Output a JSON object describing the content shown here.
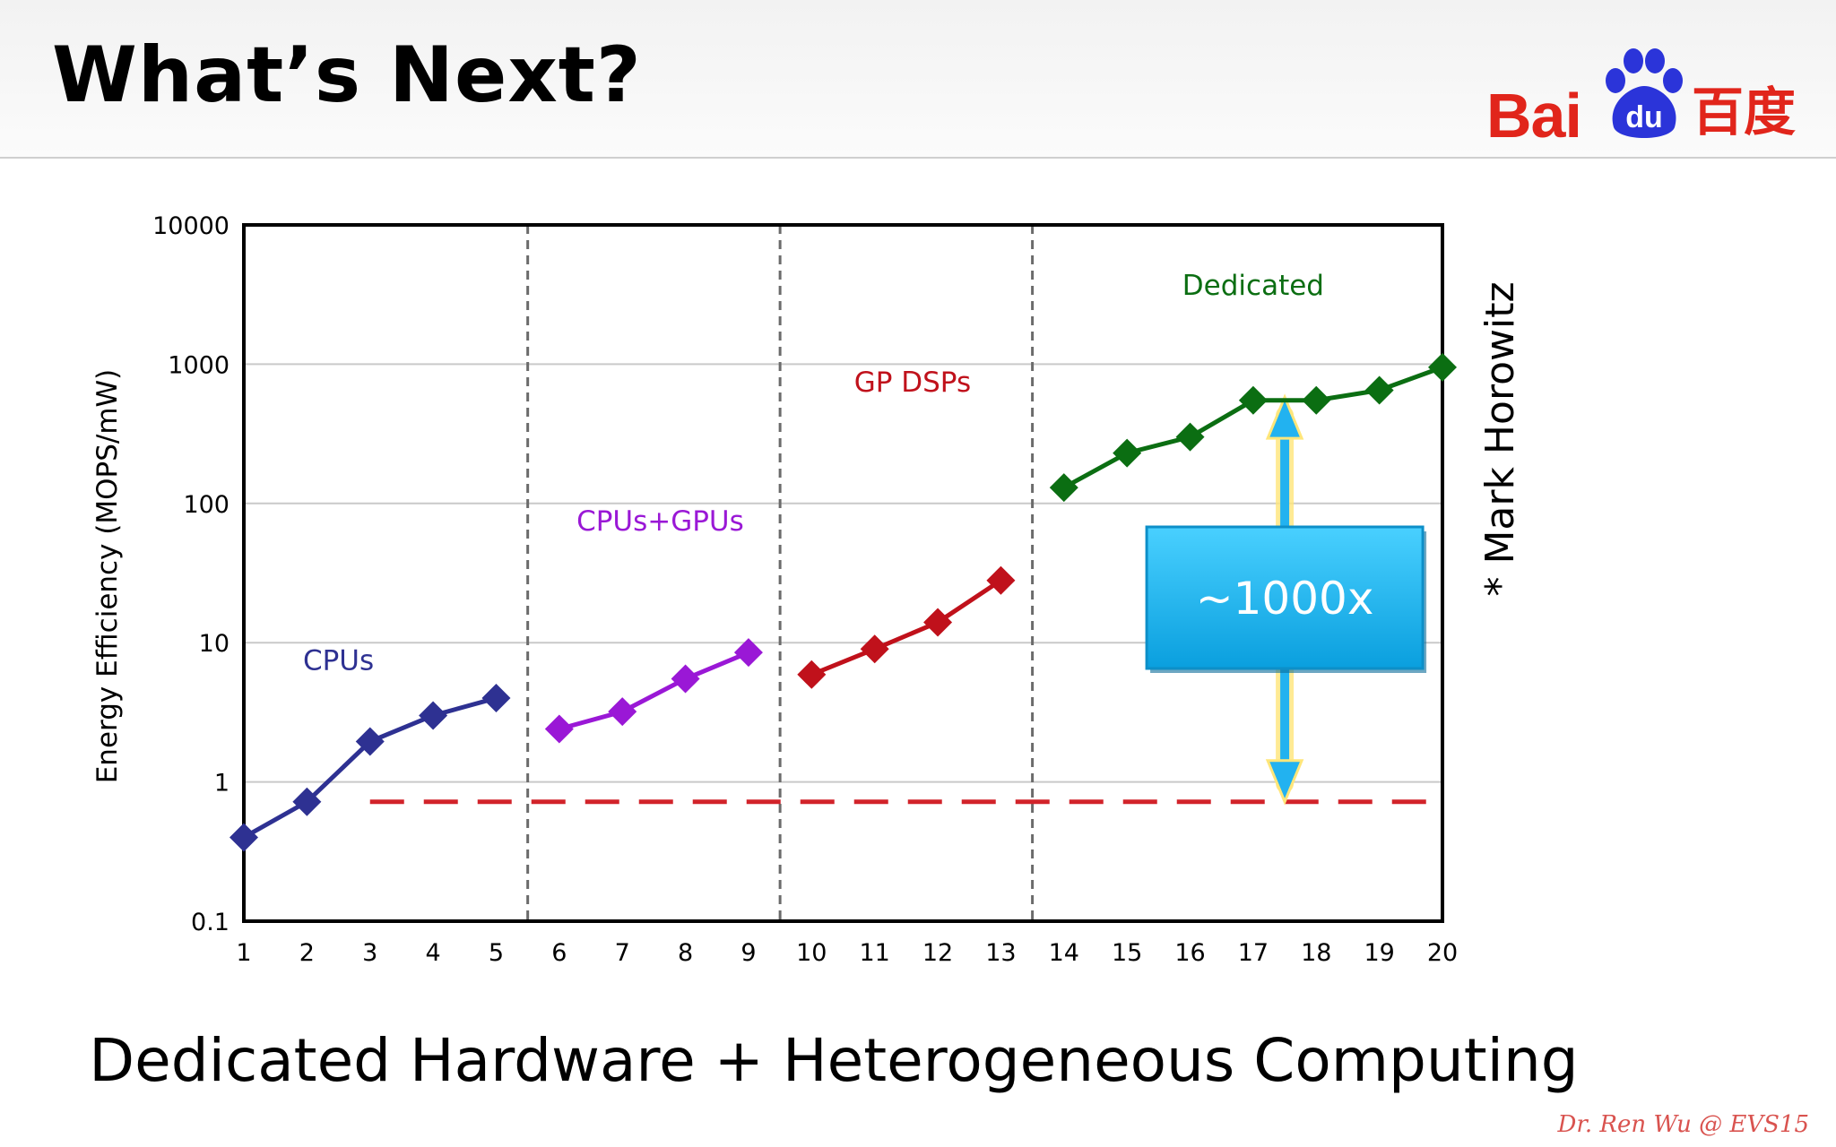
{
  "slide": {
    "title": "What’s Next?",
    "subtitle": "Dedicated Hardware + Heterogeneous Computing",
    "credit": "Dr. Ren Wu @ EVS15",
    "side_note": "* Mark Horowitz"
  },
  "logo": {
    "text_latin": "Bai",
    "text_paw": "du",
    "text_chinese": "百度",
    "color": "#e1251b",
    "paw_color": "#2b34d9"
  },
  "chart_data": {
    "type": "line",
    "title": "",
    "xlabel": "",
    "ylabel": "Energy Efficiency (MOPS/mW)",
    "yscale": "log",
    "ylim": [
      0.1,
      10000
    ],
    "xlim": [
      1,
      20
    ],
    "x_ticks": [
      1,
      2,
      3,
      4,
      5,
      6,
      7,
      8,
      9,
      10,
      11,
      12,
      13,
      14,
      15,
      16,
      17,
      18,
      19,
      20
    ],
    "y_ticks": [
      0.1,
      1,
      10,
      100,
      1000,
      10000
    ],
    "y_tick_labels": [
      "0.1",
      "1",
      "10",
      "100",
      "1000",
      "10000"
    ],
    "grid": "horizontal",
    "segment_dividers": [
      5.5,
      9.5,
      13.5
    ],
    "series": [
      {
        "name": "CPUs",
        "color": "#2e3192",
        "x": [
          1,
          2,
          3,
          4,
          5
        ],
        "y": [
          0.4,
          0.72,
          1.95,
          3.0,
          4.0
        ],
        "label_pos": [
          2.5,
          7.5
        ]
      },
      {
        "name": "CPUs+GPUs",
        "color": "#9a18d6",
        "x": [
          6,
          7,
          8,
          9
        ],
        "y": [
          2.4,
          3.2,
          5.5,
          8.5
        ],
        "label_pos": [
          7.6,
          75
        ]
      },
      {
        "name": "GP DSPs",
        "color": "#c0111b",
        "x": [
          10,
          11,
          12,
          13
        ],
        "y": [
          5.9,
          9.0,
          14.0,
          28.0
        ],
        "label_pos": [
          11.6,
          750
        ]
      },
      {
        "name": "Dedicated",
        "color": "#0b6e12",
        "x": [
          14,
          15,
          16,
          17,
          18,
          19,
          20
        ],
        "y": [
          130,
          230,
          300,
          550,
          550,
          650,
          950
        ],
        "label_pos": [
          17,
          3700
        ]
      }
    ],
    "reference_line": {
      "y": 0.72,
      "x_from": 3,
      "x_to": 20,
      "color": "#d2232a",
      "style": "dashed"
    },
    "annotation": {
      "label": "~1000x",
      "arrow_x": 17.5,
      "arrow_from_y": 0.72,
      "arrow_to_y": 580,
      "box_color": "#19b5f0",
      "arrow_color": "#22b2f0",
      "glow_color": "#ffe67a"
    }
  }
}
